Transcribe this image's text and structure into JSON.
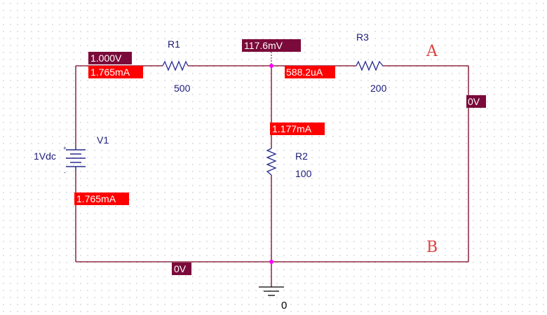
{
  "components": {
    "R1": {
      "name": "R1",
      "value": "500"
    },
    "R2": {
      "name": "R2",
      "value": "100"
    },
    "R3": {
      "name": "R3",
      "value": "200"
    },
    "V1": {
      "name": "V1",
      "value": "1Vdc",
      "plus": "+",
      "minus": "-"
    }
  },
  "terminals": {
    "A": "A",
    "B": "B"
  },
  "ground": {
    "label": "0"
  },
  "probes": {
    "v_node_top_left": "1.000V",
    "i_r1": "1.765mA",
    "v_node_mid": "117.6mV",
    "i_r3": "588.2uA",
    "v_node_right": "0V",
    "i_r2": "1.177mA",
    "i_v1": "1.765mA",
    "v_bottom": "0V"
  },
  "colors": {
    "wire": "#7a0022",
    "resistor": "#2a2a90",
    "voltage_flag": "#7a0a3a",
    "current_flag": "#ff0000",
    "junction": "#ff00ff",
    "terminal_text": "#e04040",
    "grid_dot": "#b8b8b8"
  }
}
